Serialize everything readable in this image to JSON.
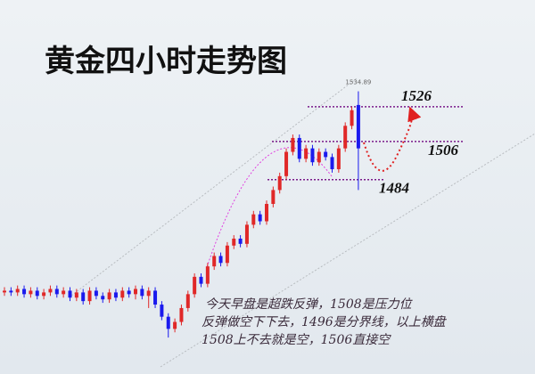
{
  "chart_data": {
    "type": "candlestick",
    "title": "黄金四小时走势图",
    "up_color": "#e02828",
    "down_color": "#1a1aee",
    "level_color": "#7a1a8a",
    "ylim": [
      1372,
      1587.5
    ],
    "open": [
      1419,
      1420,
      1419,
      1421,
      1418,
      1420,
      1417,
      1419,
      1421,
      1418,
      1420,
      1416,
      1419,
      1414,
      1420,
      1417,
      1415,
      1419,
      1416,
      1420,
      1418,
      1421,
      1417,
      1420,
      1412,
      1405,
      1398,
      1402,
      1410,
      1418,
      1428,
      1424,
      1434,
      1440,
      1436,
      1446,
      1450,
      1447,
      1458,
      1464,
      1460,
      1470,
      1478,
      1486,
      1500,
      1508,
      1496,
      1502,
      1494,
      1500,
      1497,
      1490,
      1502,
      1515,
      1527
    ],
    "high": [
      1422,
      1422,
      1423,
      1423,
      1422,
      1422,
      1421,
      1423,
      1423,
      1422,
      1422,
      1421,
      1421,
      1422,
      1422,
      1419,
      1421,
      1421,
      1422,
      1422,
      1423,
      1423,
      1422,
      1422,
      1414,
      1407,
      1404,
      1412,
      1420,
      1430,
      1430,
      1436,
      1442,
      1442,
      1448,
      1452,
      1452,
      1460,
      1466,
      1466,
      1472,
      1480,
      1488,
      1502,
      1510,
      1510,
      1504,
      1504,
      1502,
      1502,
      1499,
      1504,
      1517,
      1526,
      1534.89
    ],
    "low": [
      1417,
      1417,
      1417,
      1416,
      1416,
      1415,
      1415,
      1417,
      1416,
      1416,
      1414,
      1414,
      1412,
      1412,
      1415,
      1413,
      1413,
      1414,
      1414,
      1416,
      1415,
      1415,
      1410,
      1410,
      1403,
      1393,
      1396,
      1400,
      1408,
      1416,
      1422,
      1422,
      1432,
      1434,
      1434,
      1444,
      1445,
      1445,
      1456,
      1458,
      1458,
      1468,
      1476,
      1484,
      1498,
      1494,
      1494,
      1492,
      1492,
      1495,
      1488,
      1488,
      1500,
      1513,
      1478
    ],
    "close": [
      1420,
      1419,
      1421,
      1418,
      1420,
      1417,
      1419,
      1421,
      1418,
      1420,
      1416,
      1419,
      1414,
      1420,
      1417,
      1415,
      1419,
      1416,
      1420,
      1418,
      1421,
      1417,
      1420,
      1412,
      1405,
      1398,
      1402,
      1410,
      1418,
      1428,
      1424,
      1434,
      1440,
      1436,
      1446,
      1450,
      1447,
      1458,
      1464,
      1460,
      1470,
      1478,
      1486,
      1500,
      1508,
      1496,
      1502,
      1494,
      1500,
      1497,
      1490,
      1502,
      1515,
      1524,
      1502
    ],
    "levels": [
      1526,
      1506,
      1484
    ],
    "notes": [
      "今天早盘是超跌反弹，1508是压力位",
      "反弹做空下下去，1496是分界线，以上横盘",
      "1508上不去就是空，1506直接空"
    ]
  }
}
